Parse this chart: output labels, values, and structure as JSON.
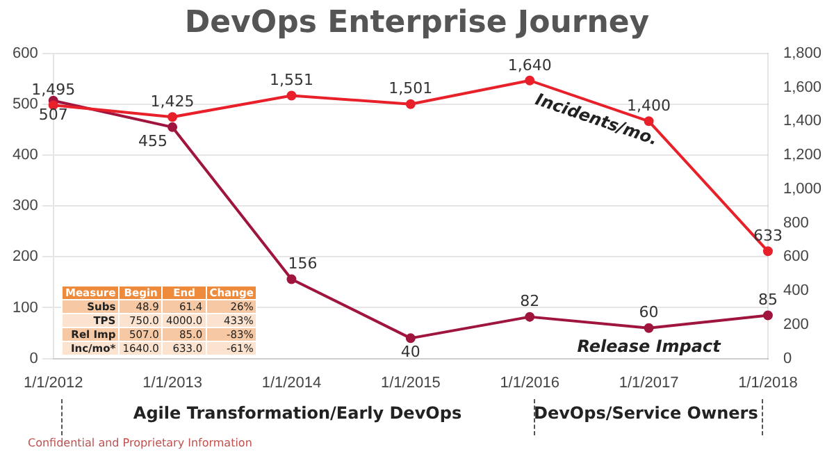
{
  "chart_data": {
    "type": "line",
    "title": "DevOps Enterprise Journey",
    "categories": [
      "1/1/2012",
      "1/1/2013",
      "1/1/2014",
      "1/1/2015",
      "1/1/2016",
      "1/1/2017",
      "1/1/2018"
    ],
    "series": [
      {
        "name": "Release Impact",
        "color": "#a0153e",
        "values": [
          507,
          455,
          156,
          40,
          82,
          60,
          85
        ]
      },
      {
        "name": "Incidents/mo.",
        "color": "#e8202a",
        "axis": "y2",
        "values": [
          1495,
          1425,
          1551,
          1501,
          1640,
          1400,
          633
        ]
      }
    ],
    "ylim": [
      0,
      600
    ],
    "yticks": [
      0,
      100,
      200,
      300,
      400,
      500,
      600
    ],
    "y2lim": [
      0,
      1800
    ],
    "y2ticks": [
      {
        "value": 0,
        "label": "0"
      },
      {
        "value": 200,
        "label": "200"
      },
      {
        "value": 400,
        "label": "400"
      },
      {
        "value": 600,
        "label": "600"
      },
      {
        "value": 800,
        "label": "800"
      },
      {
        "value": 1000,
        "label": "1,000"
      },
      {
        "value": 1200,
        "label": "1,200"
      },
      {
        "value": 1400,
        "label": "1,400"
      },
      {
        "value": 1600,
        "label": "1,600"
      },
      {
        "value": 1800,
        "label": "1,800"
      }
    ],
    "grid": "y",
    "legend": false,
    "marker": "circle",
    "line_style": "solid",
    "value_labels": [
      [
        "507",
        "455",
        "156",
        "40",
        "82",
        "60",
        "85"
      ],
      [
        "1,495",
        "1,425",
        "1,551",
        "1,501",
        "1,640",
        "1,400",
        "633"
      ]
    ],
    "annotations": [
      "Measure\tBegin\tEnd\tChange",
      "Subs\t48.9\t61.4\t26%",
      "TPS\t750.0\t4000.0\t433%",
      "Rel Imp\t507.0\t85.0\t-83%",
      "Inc/mo*\t1640.0\t633.0\t-61%",
      "Agile Transformation/Early DevOps",
      "DevOps/Service Owners",
      "Confidential and Proprietary Information"
    ]
  }
}
